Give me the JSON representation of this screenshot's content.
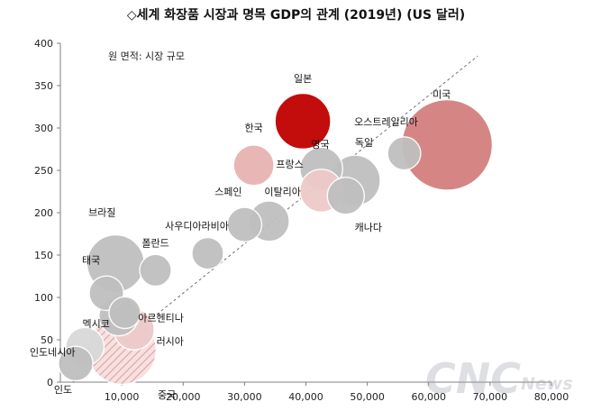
{
  "chart_data": {
    "type": "scatter",
    "title": "◇세계 화장품 시장과 명목 GDP의 관계 (2019년) (US 달러)",
    "note": "원 면적: 시장 규모",
    "xlim": [
      0,
      80000
    ],
    "ylim": [
      0,
      400
    ],
    "x_ticks": [
      "10,000",
      "20,000",
      "30,000",
      "40,000",
      "50,000",
      "60,000",
      "70,000",
      "80,000"
    ],
    "y_ticks": [
      "0",
      "50",
      "100",
      "150",
      "200",
      "250",
      "300",
      "350",
      "400"
    ],
    "trendline": {
      "x": [
        2000,
        68000
      ],
      "y": [
        0,
        385
      ]
    },
    "points": [
      {
        "label": "미국",
        "x": 63000,
        "y": 280,
        "size": 90,
        "color": "#d47f7f"
      },
      {
        "label": "일본",
        "x": 39500,
        "y": 308,
        "size": 34,
        "color": "#c00000"
      },
      {
        "label": "한국",
        "x": 31500,
        "y": 256,
        "size": 18,
        "color": "#e8b3b3"
      },
      {
        "label": "오스트레일리아",
        "x": 56000,
        "y": 270,
        "size": 12,
        "color": "#bfbfbf"
      },
      {
        "label": "독일",
        "x": 48000,
        "y": 238,
        "size": 28,
        "color": "#bfbfbf"
      },
      {
        "label": "영국",
        "x": 42500,
        "y": 252,
        "size": 20,
        "color": "#bfbfbf"
      },
      {
        "label": "프랑스",
        "x": 42500,
        "y": 226,
        "size": 20,
        "color": "#eecaca"
      },
      {
        "label": "캐나다",
        "x": 46500,
        "y": 220,
        "size": 15,
        "color": "#bfbfbf"
      },
      {
        "label": "이탈리아",
        "x": 34000,
        "y": 190,
        "size": 18,
        "color": "#bfbfbf"
      },
      {
        "label": "스페인",
        "x": 30000,
        "y": 186,
        "size": 13,
        "color": "#bfbfbf"
      },
      {
        "label": "사우디아라비아",
        "x": 24000,
        "y": 152,
        "size": 11,
        "color": "#bfbfbf"
      },
      {
        "label": "브라질",
        "x": 9000,
        "y": 140,
        "size": 36,
        "color": "#bfbfbf"
      },
      {
        "label": "폴란드",
        "x": 15500,
        "y": 132,
        "size": 11,
        "color": "#bfbfbf"
      },
      {
        "label": "태국",
        "x": 7500,
        "y": 105,
        "size": 13,
        "color": "#bfbfbf"
      },
      {
        "label": "아르헨티나",
        "x": 10500,
        "y": 82,
        "size": 11,
        "color": "#bfbfbf"
      },
      {
        "label": "멕시코",
        "x": 9500,
        "y": 78,
        "size": 17,
        "color": "#bfbfbf"
      },
      {
        "label": "러시아",
        "x": 12000,
        "y": 62,
        "size": 18,
        "color": "#eecaca"
      },
      {
        "label": "인도네시아",
        "x": 4000,
        "y": 42,
        "size": 16,
        "color": "#d9d9d9"
      },
      {
        "label": "중국",
        "x": 10000,
        "y": 38,
        "size": 52,
        "color": "#e6a8a8"
      },
      {
        "label": "인도",
        "x": 2500,
        "y": 22,
        "size": 13,
        "color": "#bfbfbf"
      }
    ]
  },
  "watermark": {
    "brand": "CNC",
    "suffix": "News"
  }
}
